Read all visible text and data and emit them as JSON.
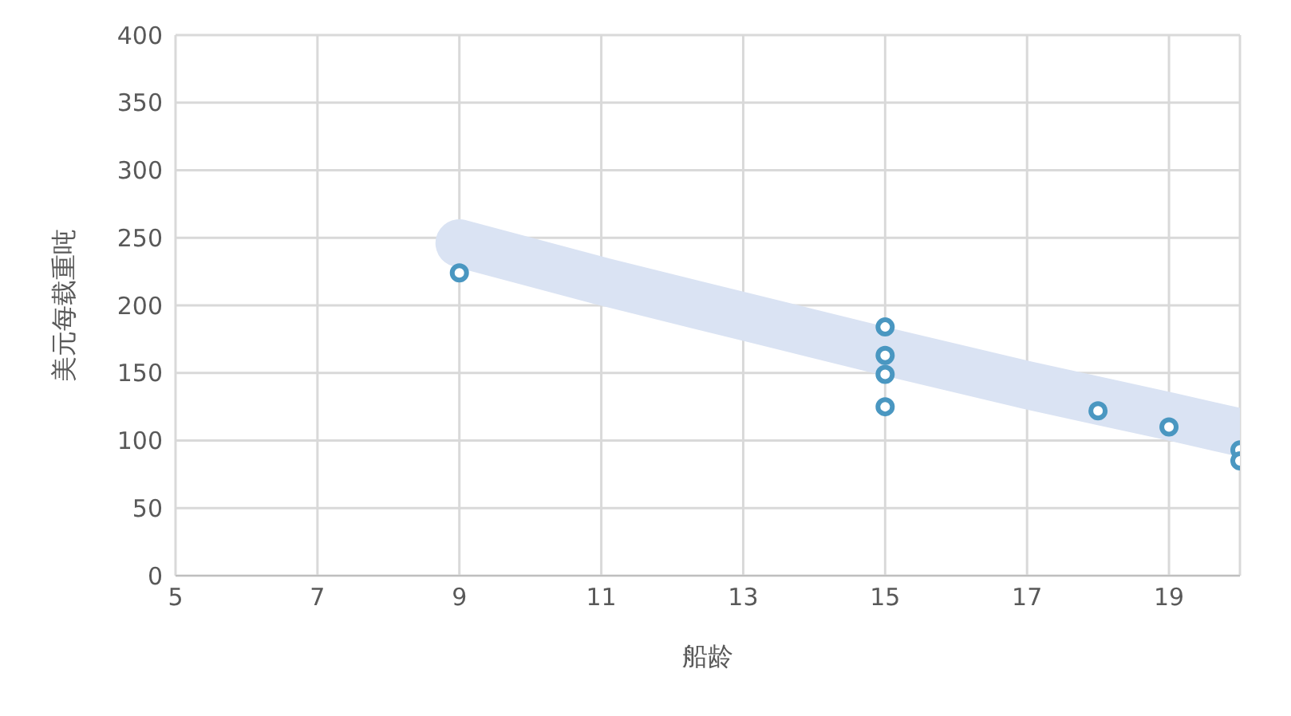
{
  "chart_data": {
    "type": "scatter",
    "xlabel": "船龄",
    "ylabel": "美元每载重吨",
    "xlim": [
      5,
      20
    ],
    "xticks": [
      5,
      7,
      9,
      11,
      13,
      15,
      17,
      19
    ],
    "ylim": [
      0,
      400
    ],
    "yticks": [
      0,
      50,
      100,
      150,
      200,
      250,
      300,
      350,
      400
    ],
    "grid": true,
    "series": [
      {
        "type": "line",
        "color": "#dae3f3",
        "x": [
          9,
          11,
          13,
          15,
          17,
          19,
          20
        ],
        "values": [
          246,
          218,
          192,
          166,
          141,
          118,
          106
        ]
      },
      {
        "color": "#4a97c1",
        "marker": "circle",
        "x": [
          9,
          15,
          15,
          15,
          15,
          18,
          19,
          20,
          20
        ],
        "values": [
          224,
          184,
          163,
          149,
          125,
          122,
          110,
          93,
          85
        ]
      }
    ]
  }
}
